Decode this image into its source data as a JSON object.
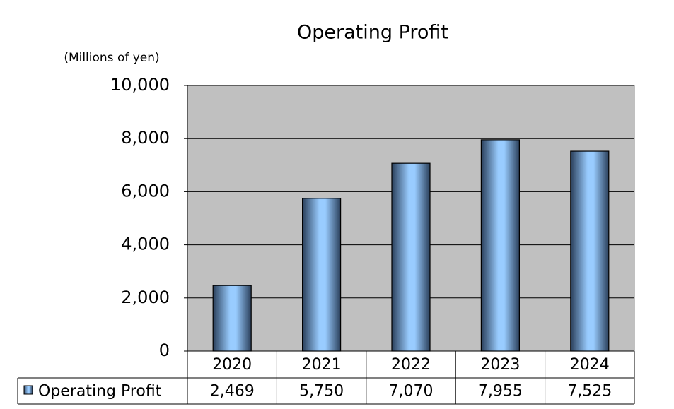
{
  "chart_data": {
    "type": "bar",
    "title": "Operating Profit",
    "subtitle": "(Millions of yen)",
    "categories": [
      "2020",
      "2021",
      "2022",
      "2023",
      "2024"
    ],
    "series": [
      {
        "name": "Operating Profit",
        "color": "#99ccff",
        "values": [
          2469,
          5750,
          7070,
          7955,
          7525
        ],
        "value_labels": [
          "2,469",
          "5,750",
          "7,070",
          "7,955",
          "7,525"
        ]
      }
    ],
    "ylim": [
      0,
      10000
    ],
    "yticks": [
      0,
      {
        "value": 2000,
        "label": "2,000"
      },
      {
        "value": 4000,
        "label": "4,000"
      },
      {
        "value": 6000,
        "label": "6,000"
      },
      {
        "value": 8000,
        "label": "8,000"
      },
      {
        "value": 10000,
        "label": "10,000"
      }
    ],
    "grid": true,
    "data_table": true
  }
}
